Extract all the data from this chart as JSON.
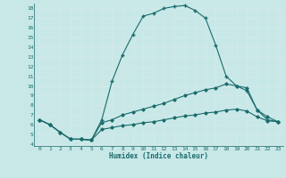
{
  "xlabel": "Humidex (Indice chaleur)",
  "bg_color": "#c8e8e8",
  "grid_color": "#d4e8e8",
  "line_color": "#1a6b6b",
  "xlim": [
    -0.5,
    23.5
  ],
  "ylim": [
    3.8,
    18.5
  ],
  "xticks": [
    0,
    1,
    2,
    3,
    4,
    5,
    6,
    7,
    8,
    9,
    10,
    11,
    12,
    13,
    14,
    15,
    16,
    17,
    18,
    19,
    20,
    21,
    22,
    23
  ],
  "yticks": [
    4,
    5,
    6,
    7,
    8,
    9,
    10,
    11,
    12,
    13,
    14,
    15,
    16,
    17,
    18
  ],
  "line1_x": [
    0,
    1,
    2,
    3,
    4,
    5,
    6,
    7,
    8,
    9,
    10,
    11,
    12,
    13,
    14,
    15,
    16,
    17,
    18,
    19,
    20,
    21,
    22,
    23
  ],
  "line1_y": [
    6.5,
    6.0,
    5.2,
    4.5,
    4.5,
    4.4,
    6.5,
    10.5,
    13.2,
    15.3,
    17.2,
    17.5,
    18.0,
    18.2,
    18.3,
    17.8,
    17.0,
    14.2,
    11.0,
    10.0,
    9.5,
    7.5,
    6.5,
    6.3
  ],
  "line2_x": [
    0,
    1,
    2,
    3,
    4,
    5,
    6,
    7,
    8,
    9,
    10,
    11,
    12,
    13,
    14,
    15,
    16,
    17,
    18,
    19,
    20,
    21,
    22,
    23
  ],
  "line2_y": [
    6.5,
    6.0,
    5.2,
    4.5,
    4.5,
    4.4,
    6.2,
    6.5,
    7.0,
    7.3,
    7.6,
    7.9,
    8.2,
    8.6,
    9.0,
    9.3,
    9.6,
    9.8,
    10.2,
    10.0,
    9.8,
    7.5,
    6.8,
    6.3
  ],
  "line3_x": [
    0,
    1,
    2,
    3,
    4,
    5,
    6,
    7,
    8,
    9,
    10,
    11,
    12,
    13,
    14,
    15,
    16,
    17,
    18,
    19,
    20,
    21,
    22,
    23
  ],
  "line3_y": [
    6.5,
    6.0,
    5.2,
    4.5,
    4.5,
    4.4,
    5.5,
    5.7,
    5.9,
    6.0,
    6.2,
    6.3,
    6.5,
    6.7,
    6.9,
    7.0,
    7.2,
    7.3,
    7.5,
    7.6,
    7.4,
    6.8,
    6.4,
    6.3
  ]
}
